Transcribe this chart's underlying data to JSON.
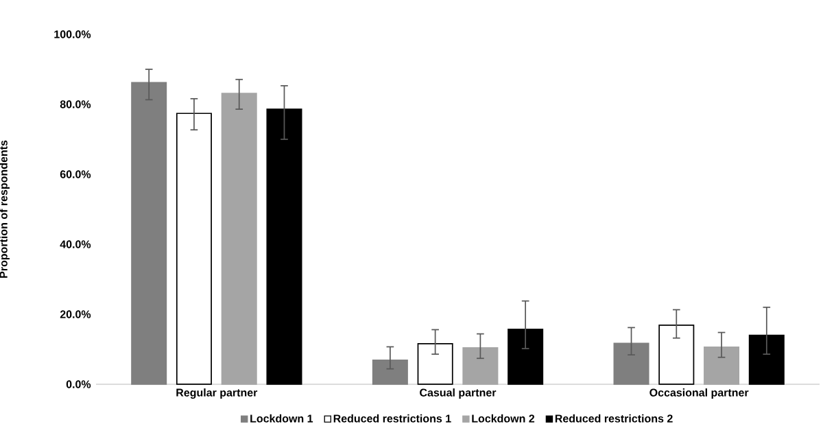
{
  "chart_data": {
    "type": "bar",
    "ylabel": "Proportion of respondents",
    "categories": [
      "Regular partner",
      "Casual partner",
      "Occasional partner"
    ],
    "series": [
      {
        "name": "Lockdown 1",
        "color": "#7f7f7f",
        "values": [
          86.2,
          6.9,
          11.7
        ],
        "errors": [
          [
            81.3,
            90.0
          ],
          [
            4.4,
            10.7
          ],
          [
            8.4,
            16.2
          ]
        ]
      },
      {
        "name": "Reduced restrictions 1",
        "color": "#ffffff",
        "values": [
          77.4,
          11.6,
          16.9
        ],
        "errors": [
          [
            72.7,
            81.6
          ],
          [
            8.6,
            15.6
          ],
          [
            13.2,
            21.3
          ]
        ]
      },
      {
        "name": "Lockdown 2",
        "color": "#a5a5a5",
        "values": [
          83.1,
          10.4,
          10.6
        ],
        "errors": [
          [
            78.6,
            87.1
          ],
          [
            7.4,
            14.4
          ],
          [
            7.7,
            14.8
          ]
        ]
      },
      {
        "name": "Reduced restrictions 2",
        "color": "#000000",
        "values": [
          78.6,
          15.7,
          14.0
        ],
        "errors": [
          [
            70.0,
            85.3
          ],
          [
            10.2,
            23.8
          ],
          [
            8.6,
            22.0
          ]
        ]
      }
    ],
    "ylim": [
      0,
      100
    ],
    "yticks": [
      {
        "value": 0,
        "label": "0.0%"
      },
      {
        "value": 20,
        "label": "20.0%"
      },
      {
        "value": 40,
        "label": "40.0%"
      },
      {
        "value": 60,
        "label": "60.0%"
      },
      {
        "value": 80,
        "label": "80.0%"
      },
      {
        "value": 100,
        "label": "100.0%"
      }
    ],
    "grid": false,
    "legend": "bottom"
  }
}
